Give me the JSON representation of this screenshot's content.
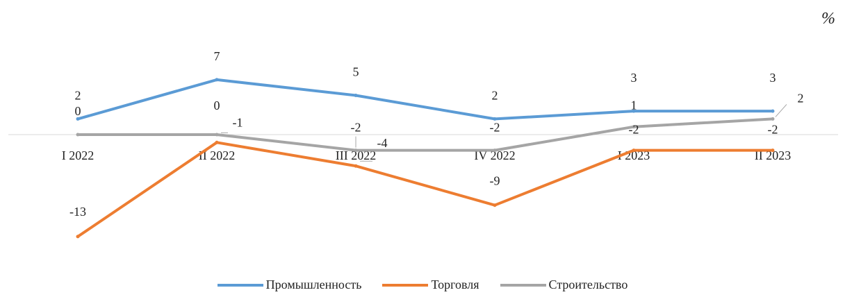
{
  "unit_label": "%",
  "chart_data": {
    "type": "line",
    "categories": [
      "I 2022",
      "II 2022",
      "III 2022",
      "IV 2022",
      "I 2023",
      "II 2023"
    ],
    "series": [
      {
        "name": "Промышленность",
        "values": [
          2,
          7,
          5,
          2,
          3,
          3
        ],
        "labels": [
          "2",
          "7",
          "5",
          "2",
          "3",
          "3"
        ],
        "color": "#5b9bd5"
      },
      {
        "name": "Торговля",
        "values": [
          -13,
          -1,
          -4,
          -9,
          -2,
          -2
        ],
        "labels": [
          "-13",
          "-1",
          "-4",
          "-9",
          "-2",
          "-2"
        ],
        "color": "#ed7d31"
      },
      {
        "name": "Строительство",
        "values": [
          0,
          0,
          -2,
          -2,
          1,
          2
        ],
        "labels": [
          "0",
          "0",
          "-2",
          "-2",
          "1",
          "2"
        ],
        "color": "#a5a5a5"
      }
    ],
    "grid": false,
    "legend_position": "bottom"
  }
}
